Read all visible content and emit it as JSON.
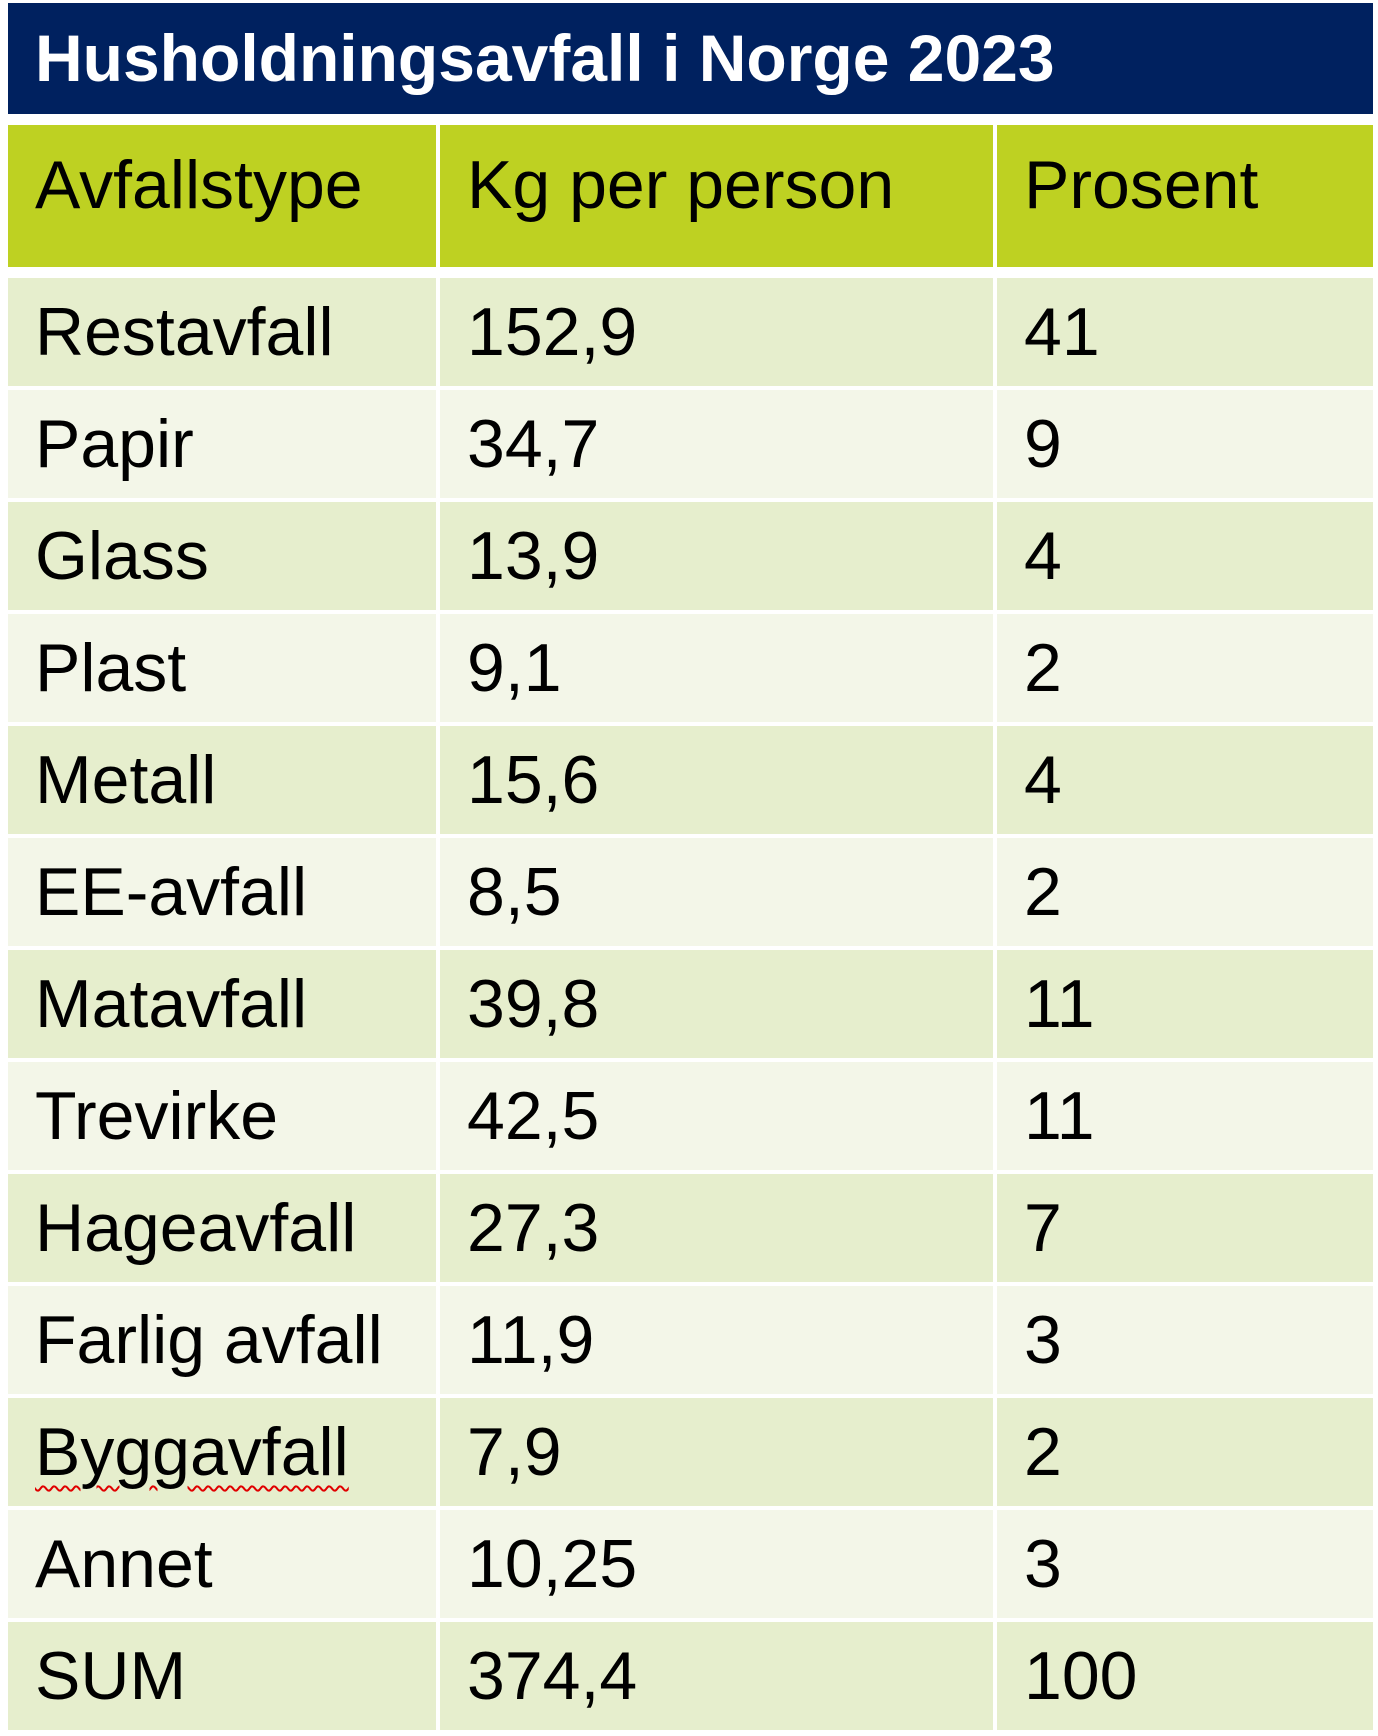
{
  "title": "Husholdningsavfall i Norge 2023",
  "colors": {
    "title_bg": "#00215f",
    "header_bg": "#bed122",
    "row_odd": "#e6eecd",
    "row_even": "#f3f6e8"
  },
  "headers": [
    "Avfallstype",
    "Kg per person",
    "Prosent"
  ],
  "rows": [
    [
      "Restavfall",
      "152,9",
      "41"
    ],
    [
      "Papir",
      "34,7",
      "9"
    ],
    [
      "Glass",
      "13,9",
      "4"
    ],
    [
      "Plast",
      "9,1",
      "2"
    ],
    [
      "Metall",
      "15,6",
      "4"
    ],
    [
      "EE-avfall",
      "8,5",
      "2"
    ],
    [
      "Matavfall",
      "39,8",
      "11"
    ],
    [
      "Trevirke",
      "42,5",
      "11"
    ],
    [
      "Hageavfall",
      "27,3",
      "7"
    ],
    [
      "Farlig avfall",
      "11,9",
      "3"
    ],
    [
      "Byggavfall",
      "7,9",
      "2"
    ],
    [
      "Annet",
      "10,25",
      "3"
    ],
    [
      "SUM",
      "374,4",
      "100"
    ]
  ]
}
